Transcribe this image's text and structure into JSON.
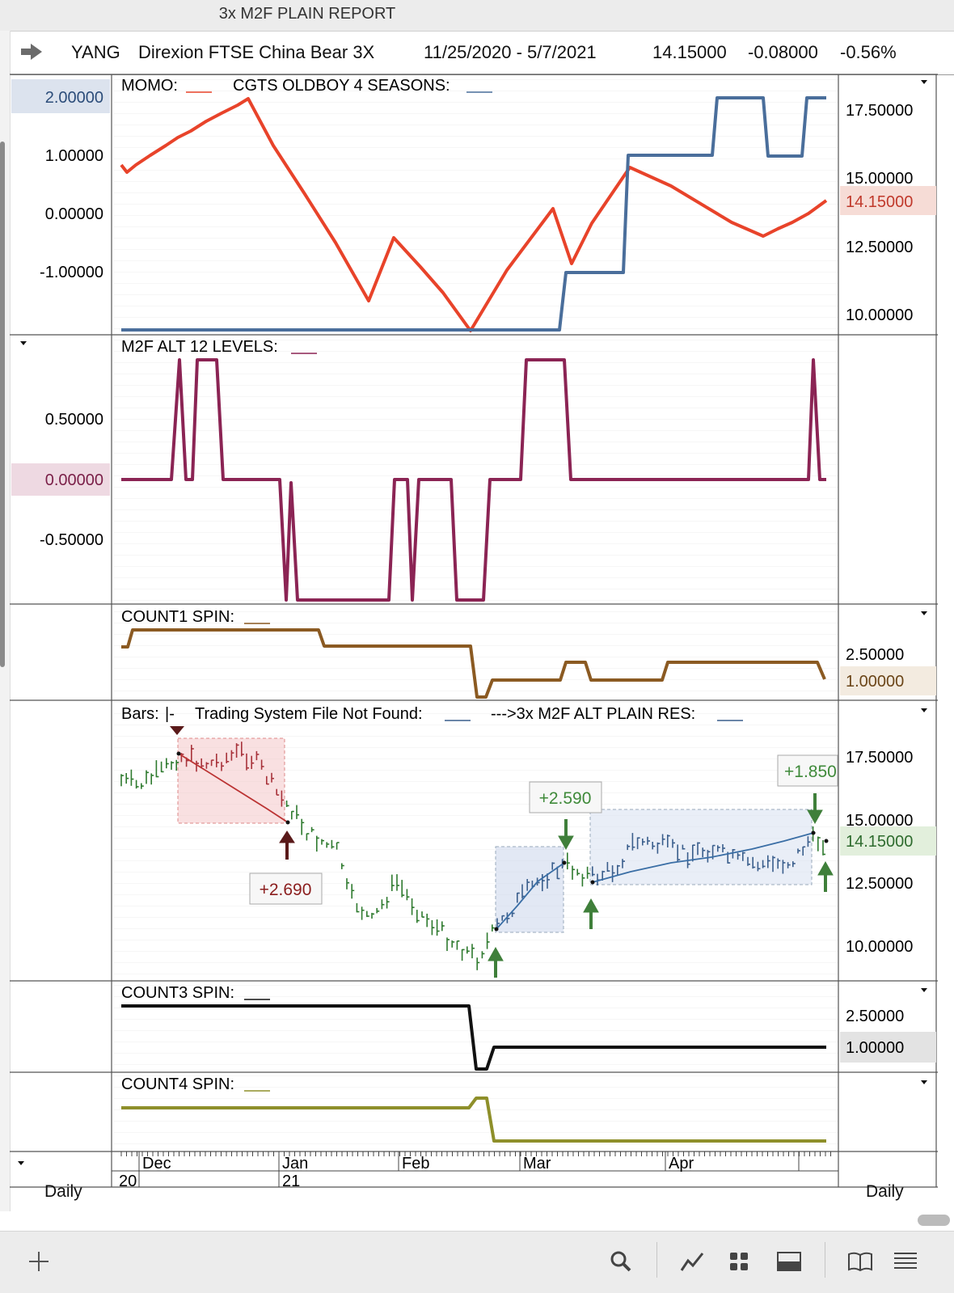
{
  "window": {
    "title": "3x M2F PLAIN REPORT"
  },
  "header": {
    "symbol": "YANG",
    "name": "Direxion FTSE China Bear 3X",
    "date_range": "11/25/2020 - 5/7/2021",
    "last": "14.15000",
    "change": "-0.08000",
    "change_pct": "-0.56%"
  },
  "pane1": {
    "legend1": "MOMO:",
    "legend2": "CGTS OLDBOY 4 SEASONS:",
    "left_ticks": [
      "2.00000",
      "1.00000",
      "0.00000",
      "-1.00000"
    ],
    "right_ticks": [
      "17.50000",
      "15.00000",
      "12.50000",
      "10.00000"
    ],
    "right_value": "14.15000"
  },
  "pane2": {
    "legend": "M2F ALT 12 LEVELS:",
    "left_ticks": [
      "0.50000",
      "0.00000",
      "-0.50000"
    ]
  },
  "pane3": {
    "legend": "COUNT1 SPIN:",
    "right_ticks": [
      "2.50000"
    ],
    "right_value": "1.00000"
  },
  "pane4": {
    "legend_bars": "Bars:",
    "legend_bars_marker": "|-",
    "legend2": "Trading System File Not Found:",
    "legend3": "--->3x M2F ALT PLAIN RES:",
    "right_ticks": [
      "17.50000",
      "15.00000",
      "12.50000",
      "10.00000"
    ],
    "right_value": "14.15000",
    "trade_labels": [
      "+2.690",
      "+2.590",
      "+1.850"
    ]
  },
  "pane5": {
    "legend": "COUNT3 SPIN:",
    "right_ticks": [
      "2.50000"
    ],
    "right_value": "1.00000"
  },
  "pane6": {
    "legend": "COUNT4 SPIN:"
  },
  "xaxis": {
    "months": [
      "Dec",
      "Jan",
      "Feb",
      "Mar",
      "Apr"
    ],
    "years": [
      "20",
      "21"
    ],
    "period_left": "Daily",
    "period_right": "Daily"
  },
  "colors": {
    "momo": "#e8432a",
    "seasons": "#4a6e9b",
    "m2f": "#8b2454",
    "count1": "#8b5a22",
    "count3": "#111111",
    "count4": "#8e8f2a",
    "bar_down": "#a8323a",
    "bar_up": "#2e7a2e",
    "bar_blue": "#3a5e8c"
  },
  "toolbar": {
    "icons": [
      "add-icon",
      "search-icon",
      "chart-line-icon",
      "grid-icon",
      "panel-icon",
      "book-icon",
      "menu-icon"
    ]
  }
}
